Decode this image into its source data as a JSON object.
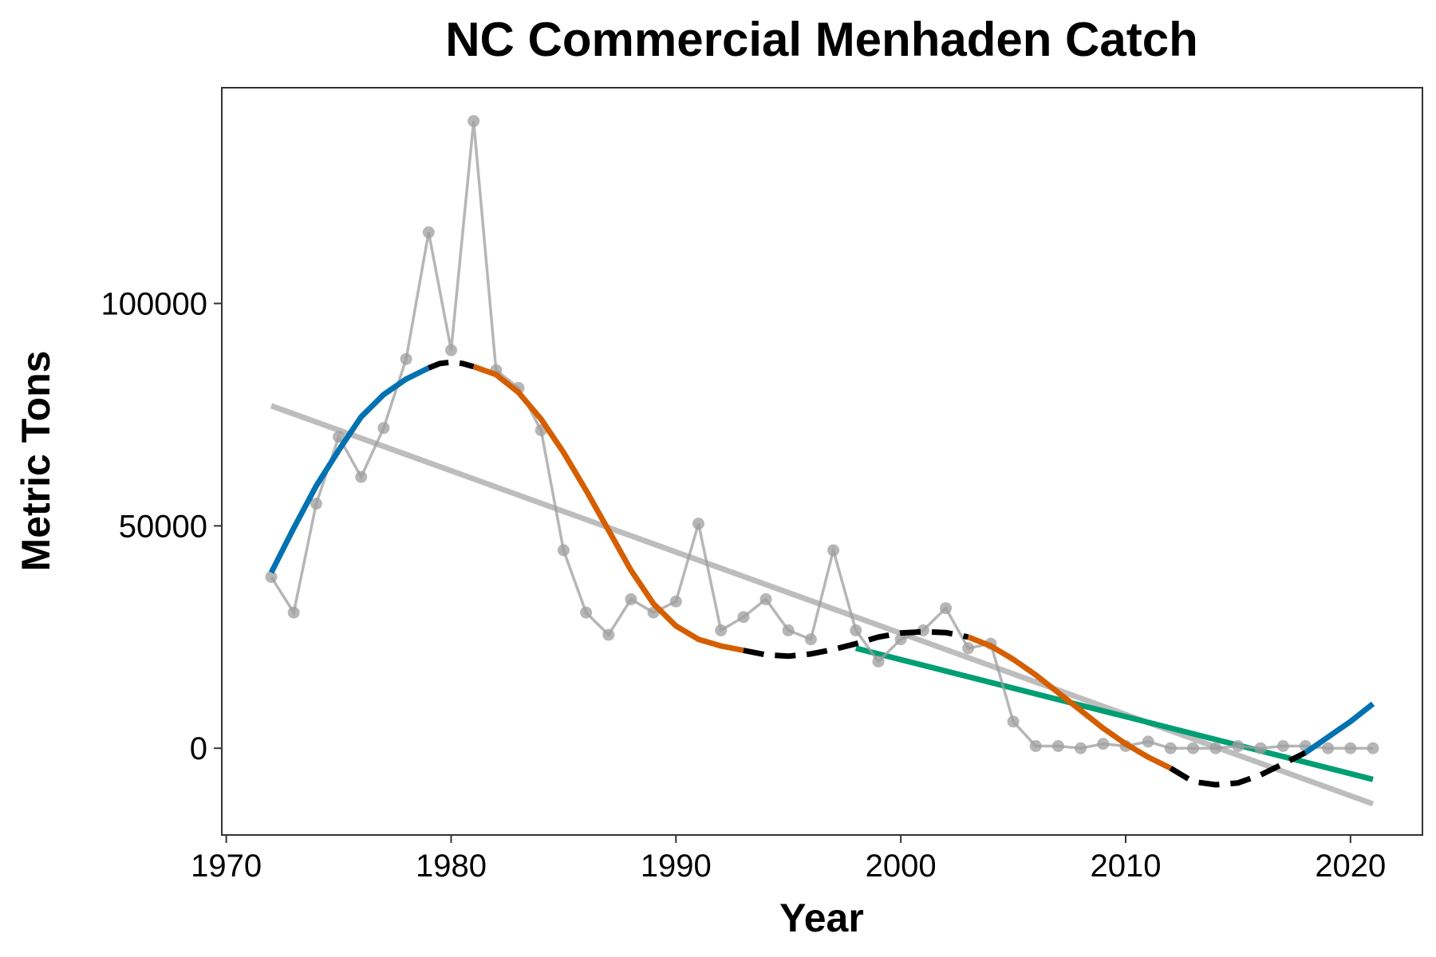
{
  "chart_data": {
    "type": "line",
    "title": "NC Commercial Menhaden Catch",
    "xlabel": "Year",
    "ylabel": "Metric Tons",
    "xlim": [
      1969.8,
      2023.2
    ],
    "ylim": [
      -19500,
      148500
    ],
    "x_ticks": [
      1970,
      1980,
      1990,
      2000,
      2010,
      2020
    ],
    "y_ticks": [
      0,
      50000,
      100000
    ],
    "x_tick_labels": [
      "1970",
      "1980",
      "1990",
      "2000",
      "2010",
      "2020"
    ],
    "y_tick_labels": [
      "0",
      "50000",
      "100000"
    ],
    "grid": false,
    "legend": "none",
    "colors": {
      "observed": "#9e9e9e",
      "increasing": "#0072B2",
      "decreasing": "#D55E00",
      "stable": "#000000",
      "recent_trend": "#009E73",
      "overall_trend": "#bdbdbd"
    },
    "series": [
      {
        "id": "observed",
        "x": [
          1972,
          1973,
          1974,
          1975,
          1976,
          1977,
          1978,
          1979,
          1980,
          1981,
          1982,
          1983,
          1984,
          1985,
          1986,
          1987,
          1988,
          1989,
          1990,
          1991,
          1992,
          1993,
          1994,
          1995,
          1996,
          1997,
          1998,
          1999,
          2000,
          2001,
          2002,
          2003,
          2004,
          2005,
          2006,
          2007,
          2008,
          2009,
          2010,
          2011,
          2012,
          2013,
          2014,
          2015,
          2016,
          2017,
          2018,
          2019,
          2020,
          2021
        ],
        "y": [
          38500,
          30500,
          55000,
          70000,
          61000,
          72000,
          87500,
          116000,
          89500,
          141000,
          85000,
          81000,
          71500,
          44500,
          30500,
          25500,
          33500,
          30500,
          33000,
          50500,
          26500,
          29500,
          33500,
          26500,
          24500,
          44500,
          26500,
          19500,
          24500,
          26500,
          31500,
          22500,
          23500,
          6000,
          500,
          500,
          0,
          1000,
          500,
          1500,
          0,
          0,
          0,
          500,
          0,
          500,
          500,
          0,
          0,
          0
        ]
      },
      {
        "id": "smooth-increasing-early",
        "x": [
          1972,
          1973,
          1974,
          1975,
          1976,
          1977,
          1978,
          1979
        ],
        "y": [
          39500,
          49500,
          59000,
          67000,
          74500,
          79500,
          83000,
          85500
        ]
      },
      {
        "id": "smooth-stable-peak",
        "x": [
          1979,
          1979.5,
          1980,
          1980.5,
          1981
        ],
        "y": [
          85500,
          86500,
          86800,
          86500,
          85800
        ]
      },
      {
        "id": "smooth-decreasing-1",
        "x": [
          1981,
          1982,
          1983,
          1984,
          1985,
          1986,
          1987,
          1988,
          1989,
          1990,
          1991,
          1992,
          1993
        ],
        "y": [
          85800,
          84000,
          80000,
          74000,
          66500,
          58000,
          49000,
          40000,
          32500,
          27500,
          24500,
          23000,
          22000
        ]
      },
      {
        "id": "smooth-stable-mid",
        "x": [
          1993,
          1994,
          1995,
          1996,
          1997,
          1998,
          1999,
          2000,
          2001,
          2002,
          2003
        ],
        "y": [
          22000,
          21000,
          20700,
          21200,
          22200,
          23500,
          25000,
          25900,
          26200,
          26000,
          25000
        ]
      },
      {
        "id": "smooth-decreasing-2",
        "x": [
          2003,
          2004,
          2005,
          2006,
          2007,
          2008,
          2009,
          2010,
          2011,
          2012
        ],
        "y": [
          25000,
          23000,
          20000,
          16500,
          12500,
          8500,
          4500,
          1000,
          -2000,
          -4500
        ]
      },
      {
        "id": "smooth-stable-low",
        "x": [
          2012,
          2013,
          2014,
          2015,
          2016,
          2017,
          2018
        ],
        "y": [
          -4500,
          -7500,
          -8200,
          -7800,
          -6000,
          -3500,
          -1000
        ]
      },
      {
        "id": "smooth-increasing-late",
        "x": [
          2018,
          2019,
          2020,
          2021
        ],
        "y": [
          -1000,
          2500,
          6000,
          10000
        ]
      },
      {
        "id": "overall-trend",
        "x": [
          1972,
          2021
        ],
        "y": [
          77000,
          -12500
        ]
      },
      {
        "id": "recent-trend",
        "x": [
          1998,
          2021
        ],
        "y": [
          22500,
          -7000
        ]
      }
    ]
  }
}
